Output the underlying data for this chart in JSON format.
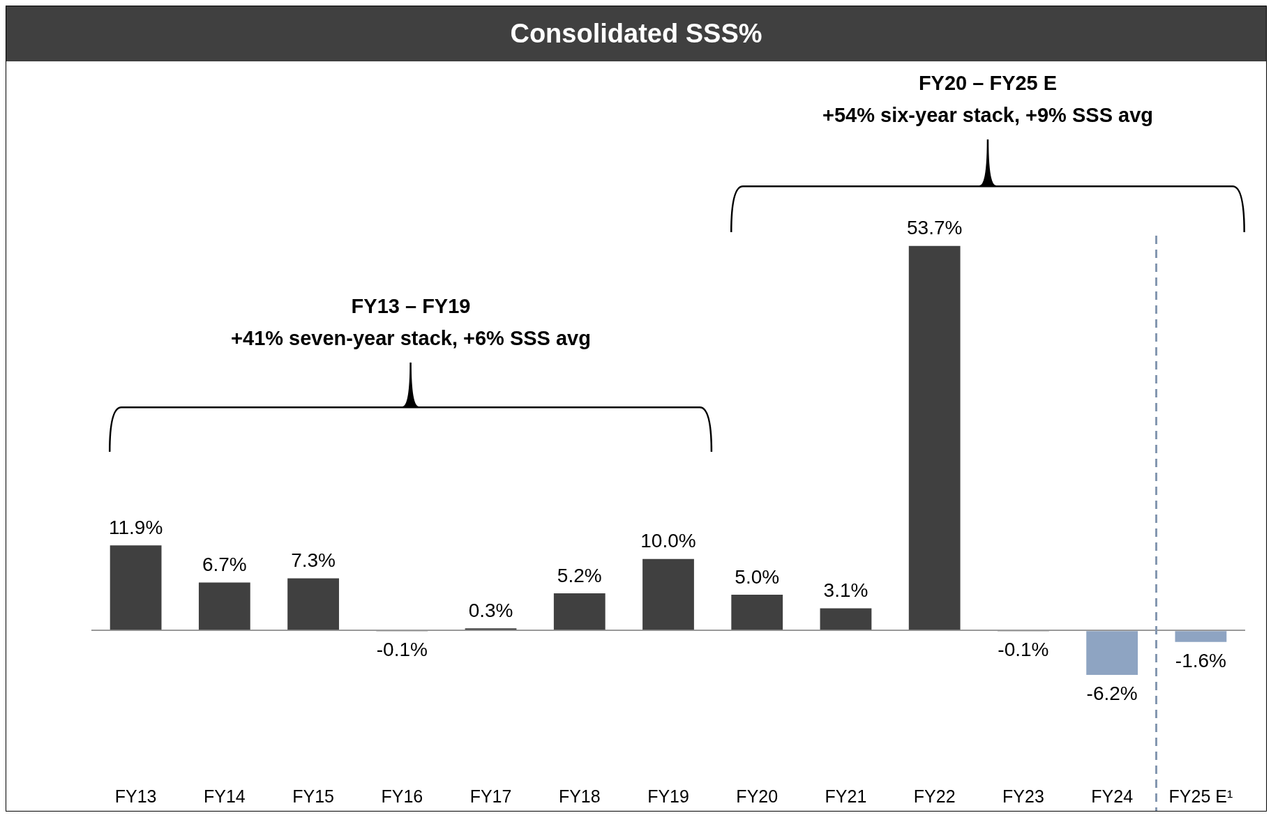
{
  "chart_data": {
    "type": "bar",
    "title": "Consolidated SSS%",
    "categories": [
      "FY13",
      "FY14",
      "FY15",
      "FY16",
      "FY17",
      "FY18",
      "FY19",
      "FY20",
      "FY21",
      "FY22",
      "FY23",
      "FY24",
      "FY25 E¹"
    ],
    "values": [
      11.9,
      6.7,
      7.3,
      -0.1,
      0.3,
      5.2,
      10.0,
      5.0,
      3.1,
      53.7,
      -0.1,
      -6.2,
      -1.6
    ],
    "colors": [
      "#404040",
      "#404040",
      "#404040",
      "#404040",
      "#404040",
      "#404040",
      "#404040",
      "#404040",
      "#404040",
      "#404040",
      "#404040",
      "#8ea4c2",
      "#8ea4c2"
    ],
    "value_labels": [
      "11.9%",
      "6.7%",
      "7.3%",
      "-0.1%",
      "0.3%",
      "5.2%",
      "10.0%",
      "5.0%",
      "3.1%",
      "53.7%",
      "-0.1%",
      "-6.2%",
      "-1.6%"
    ],
    "annotations": [
      "FY13 – FY19\n+41% seven-year stack, +6% SSS avg",
      "FY20 – FY25 E\n+54% six-year stack, +9% SSS avg"
    ],
    "grid": false,
    "legend": false
  }
}
